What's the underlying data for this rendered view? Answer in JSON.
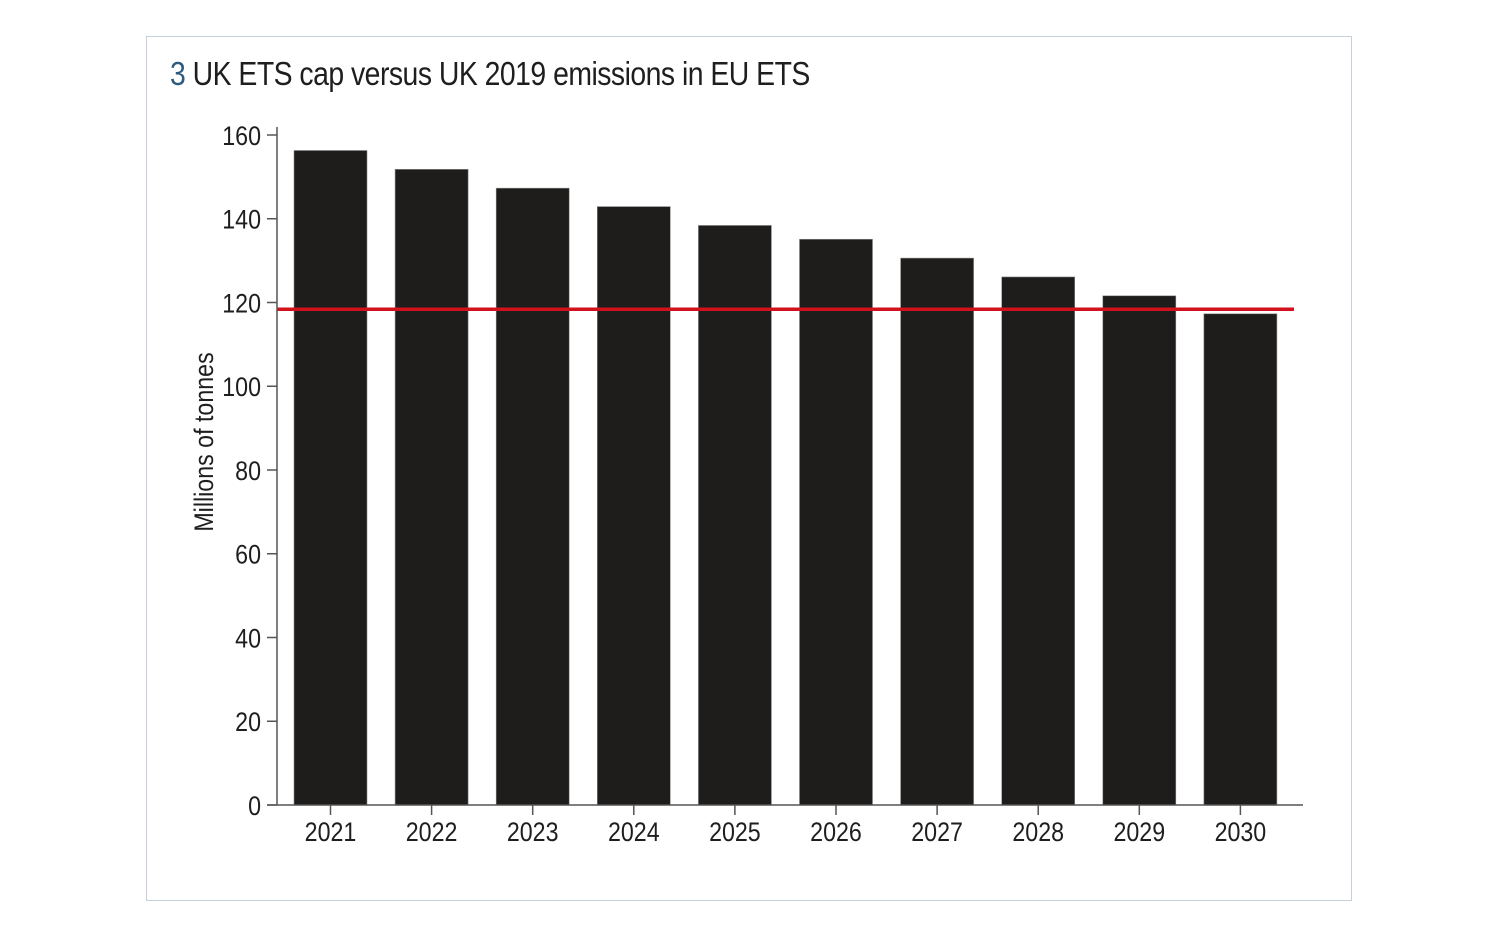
{
  "figure": {
    "number": "3",
    "title": "UK ETS cap versus UK 2019 emissions in EU ETS"
  },
  "colors": {
    "bar": "#1e1d1b",
    "reference_line": "#d1111c",
    "axis": "#555555",
    "title_number": "#2d5a7f",
    "frame_border": "#c5d0da"
  },
  "chart_data": {
    "type": "bar",
    "title": "UK ETS cap versus UK 2019 emissions in EU ETS",
    "xlabel": "",
    "ylabel": "Millions of tonnes",
    "categories": [
      "2021",
      "2022",
      "2023",
      "2024",
      "2025",
      "2026",
      "2027",
      "2028",
      "2029",
      "2030"
    ],
    "series": [
      {
        "name": "UK ETS cap",
        "values": [
          156.3,
          151.8,
          147.3,
          142.9,
          138.4,
          135.1,
          130.6,
          126.1,
          121.6,
          117.3
        ]
      }
    ],
    "reference_lines": [
      {
        "name": "UK 2019 emissions in EU ETS",
        "value": 118.4
      }
    ],
    "ylim": [
      0,
      160
    ],
    "yticks": [
      0,
      20,
      40,
      60,
      80,
      100,
      120,
      140,
      160
    ],
    "grid": false,
    "legend": "none"
  }
}
